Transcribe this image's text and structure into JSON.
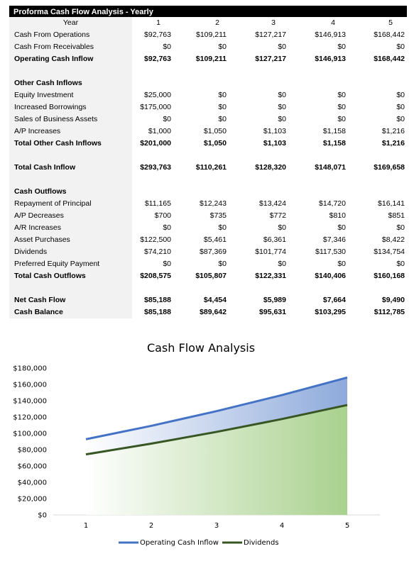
{
  "table": {
    "title": "Proforma Cash Flow Analysis - Yearly",
    "year_label": "Year",
    "years": [
      "1",
      "2",
      "3",
      "4",
      "5"
    ],
    "rows": [
      {
        "label": "Cash From Operations",
        "values": [
          "$92,763",
          "$109,211",
          "$127,217",
          "$146,913",
          "$168,442"
        ],
        "bold": false
      },
      {
        "label": "Cash From Receivables",
        "values": [
          "$0",
          "$0",
          "$0",
          "$0",
          "$0"
        ],
        "bold": false
      },
      {
        "label": "Operating Cash Inflow",
        "values": [
          "$92,763",
          "$109,211",
          "$127,217",
          "$146,913",
          "$168,442"
        ],
        "bold": true
      },
      {
        "label": "",
        "values": [
          "",
          "",
          "",
          "",
          ""
        ],
        "bold": false
      },
      {
        "label": "Other Cash Inflows",
        "values": [
          "",
          "",
          "",
          "",
          ""
        ],
        "bold": true
      },
      {
        "label": "Equity Investment",
        "values": [
          "$25,000",
          "$0",
          "$0",
          "$0",
          "$0"
        ],
        "bold": false
      },
      {
        "label": "Increased Borrowings",
        "values": [
          "$175,000",
          "$0",
          "$0",
          "$0",
          "$0"
        ],
        "bold": false
      },
      {
        "label": "Sales of Business Assets",
        "values": [
          "$0",
          "$0",
          "$0",
          "$0",
          "$0"
        ],
        "bold": false
      },
      {
        "label": "A/P Increases",
        "values": [
          "$1,000",
          "$1,050",
          "$1,103",
          "$1,158",
          "$1,216"
        ],
        "bold": false
      },
      {
        "label": "Total Other Cash Inflows",
        "values": [
          "$201,000",
          "$1,050",
          "$1,103",
          "$1,158",
          "$1,216"
        ],
        "bold": true
      },
      {
        "label": "",
        "values": [
          "",
          "",
          "",
          "",
          ""
        ],
        "bold": false
      },
      {
        "label": "Total Cash Inflow",
        "values": [
          "$293,763",
          "$110,261",
          "$128,320",
          "$148,071",
          "$169,658"
        ],
        "bold": true
      },
      {
        "label": "",
        "values": [
          "",
          "",
          "",
          "",
          ""
        ],
        "bold": false
      },
      {
        "label": "Cash Outflows",
        "values": [
          "",
          "",
          "",
          "",
          ""
        ],
        "bold": true
      },
      {
        "label": "Repayment of Principal",
        "values": [
          "$11,165",
          "$12,243",
          "$13,424",
          "$14,720",
          "$16,141"
        ],
        "bold": false
      },
      {
        "label": "A/P Decreases",
        "values": [
          "$700",
          "$735",
          "$772",
          "$810",
          "$851"
        ],
        "bold": false
      },
      {
        "label": "A/R Increases",
        "values": [
          "$0",
          "$0",
          "$0",
          "$0",
          "$0"
        ],
        "bold": false
      },
      {
        "label": "Asset Purchases",
        "values": [
          "$122,500",
          "$5,461",
          "$6,361",
          "$7,346",
          "$8,422"
        ],
        "bold": false
      },
      {
        "label": "Dividends",
        "values": [
          "$74,210",
          "$87,369",
          "$101,774",
          "$117,530",
          "$134,754"
        ],
        "bold": false
      },
      {
        "label": "Preferred Equity Payment",
        "values": [
          "$0",
          "$0",
          "$0",
          "$0",
          "$0"
        ],
        "bold": false
      },
      {
        "label": "Total Cash Outflows",
        "values": [
          "$208,575",
          "$105,807",
          "$122,331",
          "$140,406",
          "$160,168"
        ],
        "bold": true
      },
      {
        "label": "",
        "values": [
          "",
          "",
          "",
          "",
          ""
        ],
        "bold": false
      },
      {
        "label": "Net Cash Flow",
        "values": [
          "$85,188",
          "$4,454",
          "$5,989",
          "$7,664",
          "$9,490"
        ],
        "bold": true
      },
      {
        "label": "Cash Balance",
        "values": [
          "$85,188",
          "$89,642",
          "$95,631",
          "$103,295",
          "$112,785"
        ],
        "bold": true
      }
    ]
  },
  "chart_data": {
    "type": "area",
    "title": "Cash Flow Analysis",
    "x": [
      1,
      2,
      3,
      4,
      5
    ],
    "x_ticks": [
      "1",
      "2",
      "3",
      "4",
      "5"
    ],
    "y_ticks": [
      "$0",
      "$20,000",
      "$40,000",
      "$60,000",
      "$80,000",
      "$100,000",
      "$120,000",
      "$140,000",
      "$160,000",
      "$180,000"
    ],
    "ylim": [
      0,
      180000
    ],
    "legend_position": "bottom",
    "series": [
      {
        "name": "Operating Cash Inflow",
        "values": [
          92763,
          109211,
          127217,
          146913,
          168442
        ],
        "color": "#4472c4",
        "fill": "#8eaadb"
      },
      {
        "name": "Dividends",
        "values": [
          74210,
          87369,
          101774,
          117530,
          134754
        ],
        "color": "#375623",
        "fill": "#a9d18e"
      }
    ]
  }
}
